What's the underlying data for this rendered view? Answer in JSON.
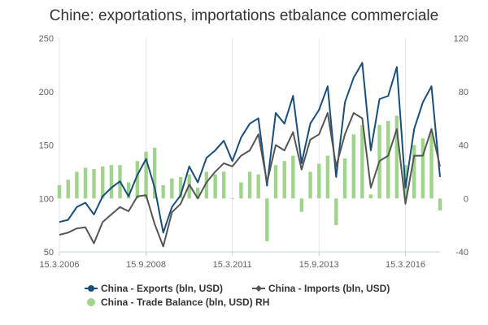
{
  "chart_data": {
    "type": "line",
    "title": "Chine: exportations, importations etbalance commerciale",
    "x_range": [
      "2006-03-15",
      "2017-03-15"
    ],
    "x_tick_labels": [
      "15.3.2006",
      "15.9.2008",
      "15.3.2011",
      "15.9.2013",
      "15.3.2016"
    ],
    "x_tick_dates": [
      "2006-03-15",
      "2008-09-15",
      "2011-03-15",
      "2013-09-15",
      "2016-03-15"
    ],
    "y_left": {
      "range": [
        50,
        250
      ],
      "ticks": [
        "50",
        "100",
        "150",
        "200",
        "250"
      ]
    },
    "y_right": {
      "range": [
        -40,
        120
      ],
      "ticks": [
        "-40",
        "0",
        "40",
        "80",
        "120"
      ]
    },
    "grid": "vertical at x ticks",
    "legend_position": "bottom",
    "colors": {
      "exports": "#1a4e7a",
      "imports": "#555555",
      "balance": "#9ed58a"
    },
    "series": [
      {
        "name": "China - Exports (bln, USD)",
        "axis": "left",
        "style": "line",
        "x": [
          "2006-03",
          "2006-06",
          "2006-09",
          "2006-12",
          "2007-03",
          "2007-06",
          "2007-09",
          "2007-12",
          "2008-03",
          "2008-06",
          "2008-09",
          "2008-12",
          "2009-03",
          "2009-06",
          "2009-09",
          "2009-12",
          "2010-03",
          "2010-06",
          "2010-09",
          "2010-12",
          "2011-03",
          "2011-06",
          "2011-09",
          "2011-12",
          "2012-03",
          "2012-06",
          "2012-09",
          "2012-12",
          "2013-03",
          "2013-06",
          "2013-09",
          "2013-12",
          "2014-03",
          "2014-06",
          "2014-09",
          "2014-12",
          "2015-03",
          "2015-06",
          "2015-09",
          "2015-12",
          "2016-03",
          "2016-06",
          "2016-09",
          "2016-12",
          "2017-03"
        ],
        "values": [
          78,
          80,
          92,
          96,
          85,
          102,
          110,
          116,
          102,
          122,
          137,
          110,
          68,
          92,
          103,
          130,
          115,
          138,
          145,
          154,
          135,
          157,
          170,
          175,
          112,
          180,
          170,
          196,
          133,
          170,
          183,
          205,
          120,
          190,
          213,
          227,
          145,
          193,
          196,
          223,
          110,
          165,
          190,
          205,
          120
        ]
      },
      {
        "name": "China - Imports (bln, USD)",
        "axis": "left",
        "style": "line",
        "x": [
          "2006-03",
          "2006-06",
          "2006-09",
          "2006-12",
          "2007-03",
          "2007-06",
          "2007-09",
          "2007-12",
          "2008-03",
          "2008-06",
          "2008-09",
          "2008-12",
          "2009-03",
          "2009-06",
          "2009-09",
          "2009-12",
          "2010-03",
          "2010-06",
          "2010-09",
          "2010-12",
          "2011-03",
          "2011-06",
          "2011-09",
          "2011-12",
          "2012-03",
          "2012-06",
          "2012-09",
          "2012-12",
          "2013-03",
          "2013-06",
          "2013-09",
          "2013-12",
          "2014-03",
          "2014-06",
          "2014-09",
          "2014-12",
          "2015-03",
          "2015-06",
          "2015-09",
          "2015-12",
          "2016-03",
          "2016-06",
          "2016-09",
          "2016-12",
          "2017-03"
        ],
        "values": [
          66,
          68,
          72,
          73,
          58,
          78,
          85,
          92,
          88,
          102,
          103,
          76,
          55,
          87,
          95,
          113,
          100,
          115,
          125,
          133,
          130,
          140,
          145,
          160,
          115,
          150,
          145,
          162,
          127,
          155,
          160,
          180,
          130,
          160,
          180,
          175,
          110,
          135,
          140,
          165,
          95,
          140,
          140,
          165,
          130
        ]
      },
      {
        "name": "China - Trade Balance (bln, USD) RH",
        "axis": "right",
        "style": "bar",
        "x": [
          "2006-03",
          "2006-06",
          "2006-09",
          "2006-12",
          "2007-03",
          "2007-06",
          "2007-09",
          "2007-12",
          "2008-03",
          "2008-06",
          "2008-09",
          "2008-12",
          "2009-03",
          "2009-06",
          "2009-09",
          "2009-12",
          "2010-03",
          "2010-06",
          "2010-09",
          "2010-12",
          "2011-03",
          "2011-06",
          "2011-09",
          "2011-12",
          "2012-03",
          "2012-06",
          "2012-09",
          "2012-12",
          "2013-03",
          "2013-06",
          "2013-09",
          "2013-12",
          "2014-03",
          "2014-06",
          "2014-09",
          "2014-12",
          "2015-03",
          "2015-06",
          "2015-09",
          "2015-12",
          "2016-03",
          "2016-06",
          "2016-09",
          "2016-12",
          "2017-03"
        ],
        "values": [
          10,
          14,
          20,
          23,
          22,
          24,
          25,
          25,
          12,
          28,
          35,
          38,
          10,
          15,
          16,
          18,
          8,
          20,
          18,
          20,
          0,
          12,
          20,
          18,
          -32,
          25,
          28,
          32,
          -10,
          20,
          26,
          32,
          -20,
          30,
          48,
          55,
          3,
          55,
          58,
          62,
          25,
          40,
          45,
          50,
          -9
        ]
      }
    ]
  }
}
